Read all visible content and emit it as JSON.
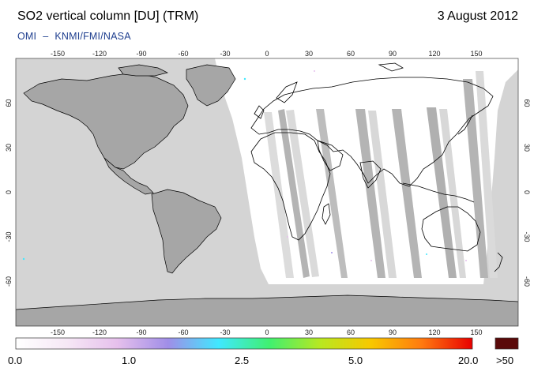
{
  "header": {
    "title": "SO2 vertical column [DU] (TRM)",
    "date": "3 August 2012",
    "credit_left": "OMI",
    "credit_dash": "–",
    "credit_right": "KNMI/FMI/NASA"
  },
  "map": {
    "lon_ticks": [
      "-150",
      "-120",
      "-90",
      "-60",
      "-30",
      "0",
      "30",
      "60",
      "90",
      "120",
      "150"
    ],
    "lat_ticks": [
      "60",
      "30",
      "0",
      "-30",
      "-60"
    ],
    "colors": {
      "land_data_gap": "#a6a6a6",
      "ocean_data_gap": "#d4d4d4",
      "swath_gap_dark": "#b4b4b4",
      "swath_gap_light": "#dadada",
      "coastline": "#000000"
    }
  },
  "colorbar": {
    "labels": [
      "0.0",
      "1.0",
      "2.5",
      "5.0",
      "20.0"
    ],
    "overflow_label": ">50",
    "gradient_stops": [
      "#ffffff",
      "#f6e8f6",
      "#e6c0ec",
      "#a08ee8",
      "#40e8ff",
      "#40f070",
      "#b8e820",
      "#f8c800",
      "#ff7a10",
      "#e80000"
    ],
    "overflow_color": "#5a0a0a"
  }
}
